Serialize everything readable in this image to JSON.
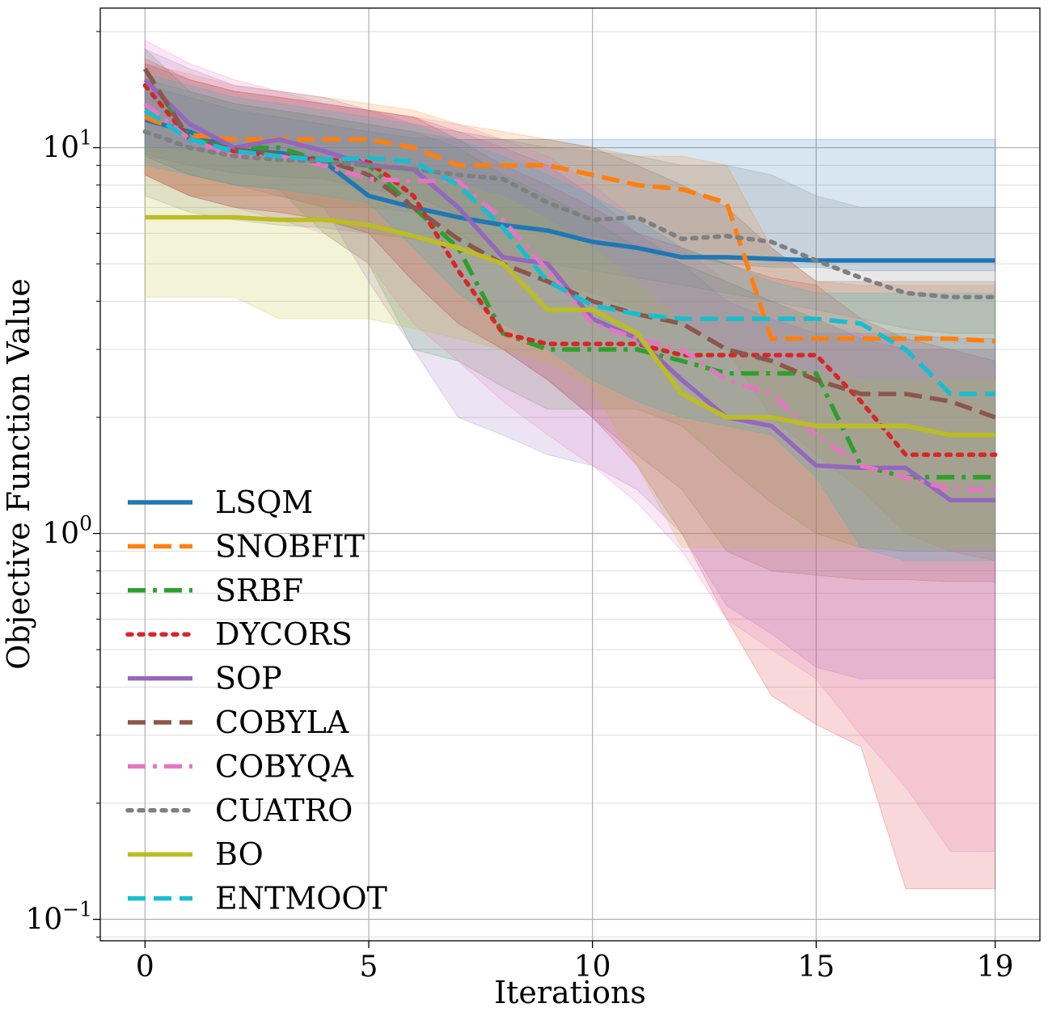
{
  "chart_data": {
    "type": "line",
    "xlabel": "Iterations",
    "ylabel": "Objective Function Value",
    "yscale": "log",
    "xlim": [
      -1,
      20
    ],
    "ylim": [
      0.088,
      23
    ],
    "grid": true,
    "legend_position": "lower-left",
    "xticks": [
      0,
      5,
      10,
      15,
      19
    ],
    "xtick_labels": [
      "0",
      "5",
      "10",
      "15",
      "19"
    ],
    "yticks": [
      0.1,
      1,
      10
    ],
    "ytick_labels": [
      {
        "base": "10",
        "exp": "−1"
      },
      {
        "base": "10",
        "exp": "0"
      },
      {
        "base": "10",
        "exp": "1"
      }
    ],
    "x": [
      0,
      1,
      2,
      3,
      4,
      5,
      6,
      7,
      8,
      9,
      10,
      11,
      12,
      13,
      14,
      15,
      16,
      17,
      18,
      19
    ],
    "series": [
      {
        "name": "LSQM",
        "color": "#1f77b4",
        "style": "solid",
        "values": [
          11.8,
          11.0,
          9.8,
          9.7,
          9.2,
          7.5,
          7.0,
          6.6,
          6.3,
          6.1,
          5.7,
          5.5,
          5.2,
          5.2,
          5.15,
          5.1,
          5.1,
          5.1,
          5.1,
          5.1
        ],
        "lower": [
          9.6,
          9.0,
          8.6,
          8.4,
          8.3,
          7.8,
          7.5,
          6.7,
          6.3,
          6.0,
          5.9,
          5.6,
          5.3,
          5.0,
          4.9,
          4.9,
          4.8,
          4.8,
          4.8,
          4.8
        ],
        "upper": [
          14.5,
          13.5,
          12.5,
          12.0,
          11.5,
          11.0,
          10.6,
          10.5,
          10.5,
          10.5,
          10.5,
          10.5,
          10.5,
          10.5,
          10.5,
          10.5,
          10.5,
          10.5,
          10.5,
          10.5
        ]
      },
      {
        "name": "SNOBFIT",
        "color": "#ff7f0e",
        "style": "dashed",
        "values": [
          12.0,
          10.8,
          10.5,
          10.5,
          10.5,
          10.5,
          10.0,
          9.0,
          9.0,
          9.0,
          8.5,
          8.0,
          7.8,
          7.2,
          3.2,
          3.2,
          3.2,
          3.2,
          3.2,
          3.15
        ],
        "lower": [
          8.5,
          7.5,
          7.5,
          7.5,
          7.0,
          7.0,
          6.8,
          6.0,
          5.0,
          4.5,
          4.2,
          3.8,
          3.5,
          3.0,
          2.0,
          1.6,
          1.3,
          1.0,
          0.9,
          0.85
        ],
        "upper": [
          16.5,
          15.5,
          14.5,
          14.0,
          13.5,
          13.0,
          12.5,
          11.5,
          11.0,
          10.5,
          10.0,
          9.5,
          9.5,
          9.0,
          5.5,
          4.5,
          4.4,
          4.4,
          4.4,
          4.4
        ]
      },
      {
        "name": "SRBF",
        "color": "#2ca02c",
        "style": "dashdot",
        "values": [
          16.0,
          10.5,
          10.0,
          10.0,
          9.2,
          9.0,
          7.0,
          5.5,
          3.3,
          3.0,
          3.0,
          3.0,
          2.8,
          2.6,
          2.6,
          2.6,
          1.5,
          1.4,
          1.4,
          1.4
        ],
        "lower": [
          9.5,
          8.5,
          8.0,
          7.8,
          6.0,
          5.0,
          3.0,
          2.8,
          2.4,
          2.1,
          2.1,
          2.1,
          1.9,
          1.5,
          1.2,
          1.0,
          0.92,
          0.9,
          0.9,
          0.9
        ],
        "upper": [
          18.0,
          14.0,
          13.0,
          12.5,
          12.0,
          11.5,
          11.0,
          10.0,
          8.5,
          7.5,
          6.5,
          5.5,
          5.0,
          4.5,
          4.0,
          3.6,
          3.2,
          3.0,
          3.0,
          3.0
        ]
      },
      {
        "name": "DYCORS",
        "color": "#d62728",
        "style": "dotted",
        "values": [
          14.5,
          10.5,
          9.8,
          9.5,
          9.3,
          9.2,
          7.5,
          4.8,
          3.3,
          3.1,
          3.1,
          3.1,
          2.9,
          2.9,
          2.9,
          2.9,
          2.2,
          1.6,
          1.6,
          1.6
        ],
        "lower": [
          8.5,
          7.5,
          7.0,
          6.8,
          6.5,
          6.0,
          4.5,
          3.5,
          3.0,
          2.5,
          2.0,
          1.5,
          1.0,
          0.6,
          0.38,
          0.32,
          0.28,
          0.12,
          0.12,
          0.12
        ],
        "upper": [
          17.0,
          15.0,
          14.0,
          13.5,
          13.0,
          12.5,
          12.0,
          10.5,
          9.0,
          8.0,
          7.0,
          6.0,
          5.5,
          5.0,
          4.6,
          4.4,
          3.6,
          3.2,
          3.0,
          2.8
        ]
      },
      {
        "name": "SOP",
        "color": "#9467bd",
        "style": "solid",
        "values": [
          15.0,
          11.5,
          10.0,
          10.5,
          9.8,
          9.0,
          8.8,
          7.0,
          5.2,
          5.0,
          3.6,
          3.2,
          2.5,
          2.0,
          1.9,
          1.5,
          1.48,
          1.48,
          1.22,
          1.22
        ],
        "lower": [
          9.5,
          8.5,
          8.0,
          7.5,
          7.0,
          4.5,
          3.0,
          2.0,
          1.8,
          1.6,
          1.5,
          1.3,
          1.0,
          0.65,
          0.55,
          0.45,
          0.42,
          0.42,
          0.42,
          0.42
        ],
        "upper": [
          18.0,
          16.0,
          14.5,
          14.0,
          13.5,
          12.5,
          11.5,
          11.0,
          10.0,
          9.0,
          7.5,
          6.0,
          5.0,
          4.0,
          3.6,
          3.3,
          3.3,
          3.3,
          3.2,
          3.2
        ]
      },
      {
        "name": "COBYLA",
        "color": "#8c564b",
        "style": "dashed",
        "values": [
          16.0,
          10.5,
          9.9,
          9.6,
          9.3,
          8.5,
          7.0,
          5.8,
          5.0,
          4.5,
          4.0,
          3.7,
          3.5,
          3.0,
          2.8,
          2.5,
          2.3,
          2.3,
          2.2,
          2.0
        ],
        "lower": [
          8.5,
          7.5,
          7.0,
          6.8,
          6.5,
          6.0,
          4.5,
          3.5,
          3.0,
          2.5,
          2.0,
          1.6,
          1.3,
          0.9,
          0.8,
          0.78,
          0.76,
          0.76,
          0.75,
          0.75
        ],
        "upper": [
          16.5,
          15.0,
          14.0,
          13.5,
          13.0,
          12.5,
          12.0,
          11.0,
          10.5,
          10.5,
          10.0,
          9.0,
          8.0,
          7.0,
          5.5,
          4.5,
          4.5,
          4.5,
          4.5,
          4.5
        ]
      },
      {
        "name": "COBYQA",
        "color": "#e377c2",
        "style": "dashdot",
        "values": [
          13.0,
          10.5,
          9.5,
          9.5,
          9.0,
          8.3,
          8.2,
          8.2,
          6.5,
          4.8,
          3.5,
          3.2,
          3.0,
          2.5,
          2.3,
          1.8,
          1.5,
          1.4,
          1.3,
          1.3
        ],
        "lower": [
          8.5,
          7.5,
          7.0,
          6.5,
          6.0,
          5.0,
          3.5,
          2.8,
          2.2,
          1.8,
          1.5,
          1.2,
          0.9,
          0.6,
          0.5,
          0.42,
          0.3,
          0.22,
          0.15,
          0.15
        ],
        "upper": [
          19.0,
          16.5,
          15.0,
          14.0,
          13.0,
          12.5,
          12.0,
          11.5,
          10.5,
          9.5,
          8.0,
          6.5,
          5.5,
          4.5,
          4.0,
          3.5,
          3.3,
          3.0,
          3.0,
          3.0
        ]
      },
      {
        "name": "CUATRO",
        "color": "#7f7f7f",
        "style": "dotted",
        "values": [
          11.0,
          10.0,
          9.5,
          9.3,
          9.2,
          9.0,
          8.8,
          8.5,
          8.3,
          7.2,
          6.5,
          6.6,
          5.8,
          5.9,
          5.7,
          5.1,
          4.6,
          4.2,
          4.1,
          4.1
        ],
        "lower": [
          7.5,
          6.8,
          6.5,
          6.3,
          6.2,
          6.0,
          5.8,
          5.5,
          5.2,
          5.0,
          4.8,
          4.6,
          4.4,
          4.2,
          4.0,
          3.8,
          3.6,
          3.4,
          3.3,
          3.3
        ],
        "upper": [
          15.0,
          14.0,
          13.0,
          12.5,
          12.0,
          11.5,
          11.0,
          10.5,
          10.5,
          10.0,
          9.8,
          9.5,
          9.0,
          9.0,
          8.5,
          7.5,
          7.0,
          7.0,
          7.0,
          7.0
        ]
      },
      {
        "name": "BO",
        "color": "#bcbd22",
        "style": "solid",
        "values": [
          6.6,
          6.6,
          6.6,
          6.5,
          6.5,
          6.3,
          5.9,
          5.5,
          5.0,
          3.8,
          3.8,
          3.3,
          2.3,
          2.0,
          2.0,
          1.9,
          1.9,
          1.9,
          1.8,
          1.8
        ],
        "lower": [
          4.1,
          4.1,
          4.1,
          3.6,
          3.6,
          3.6,
          3.4,
          3.2,
          3.0,
          2.8,
          2.4,
          1.5,
          0.92,
          0.92,
          0.92,
          0.92,
          0.92,
          0.92,
          0.92,
          0.92
        ],
        "upper": [
          10.0,
          9.8,
          9.5,
          9.3,
          9.0,
          8.8,
          8.5,
          8.0,
          7.5,
          6.5,
          5.5,
          4.5,
          3.5,
          3.0,
          2.8,
          2.6,
          2.5,
          2.5,
          2.5,
          2.5
        ]
      },
      {
        "name": "ENTMOOT",
        "color": "#17becf",
        "style": "dashed",
        "values": [
          12.5,
          10.5,
          9.8,
          9.5,
          9.3,
          9.4,
          9.2,
          8.0,
          6.2,
          4.5,
          3.9,
          3.7,
          3.6,
          3.6,
          3.6,
          3.6,
          3.5,
          3.0,
          2.3,
          2.3
        ],
        "lower": [
          9.0,
          8.5,
          8.0,
          7.8,
          7.5,
          7.2,
          5.5,
          4.2,
          3.5,
          3.0,
          2.5,
          2.2,
          2.0,
          1.9,
          1.8,
          1.4,
          0.92,
          0.85,
          0.85,
          0.85
        ],
        "upper": [
          15.5,
          14.5,
          13.5,
          13.0,
          12.5,
          12.0,
          11.5,
          10.5,
          9.5,
          8.5,
          7.5,
          6.5,
          5.5,
          5.0,
          4.5,
          4.2,
          4.2,
          4.2,
          4.2,
          4.2
        ]
      }
    ]
  }
}
